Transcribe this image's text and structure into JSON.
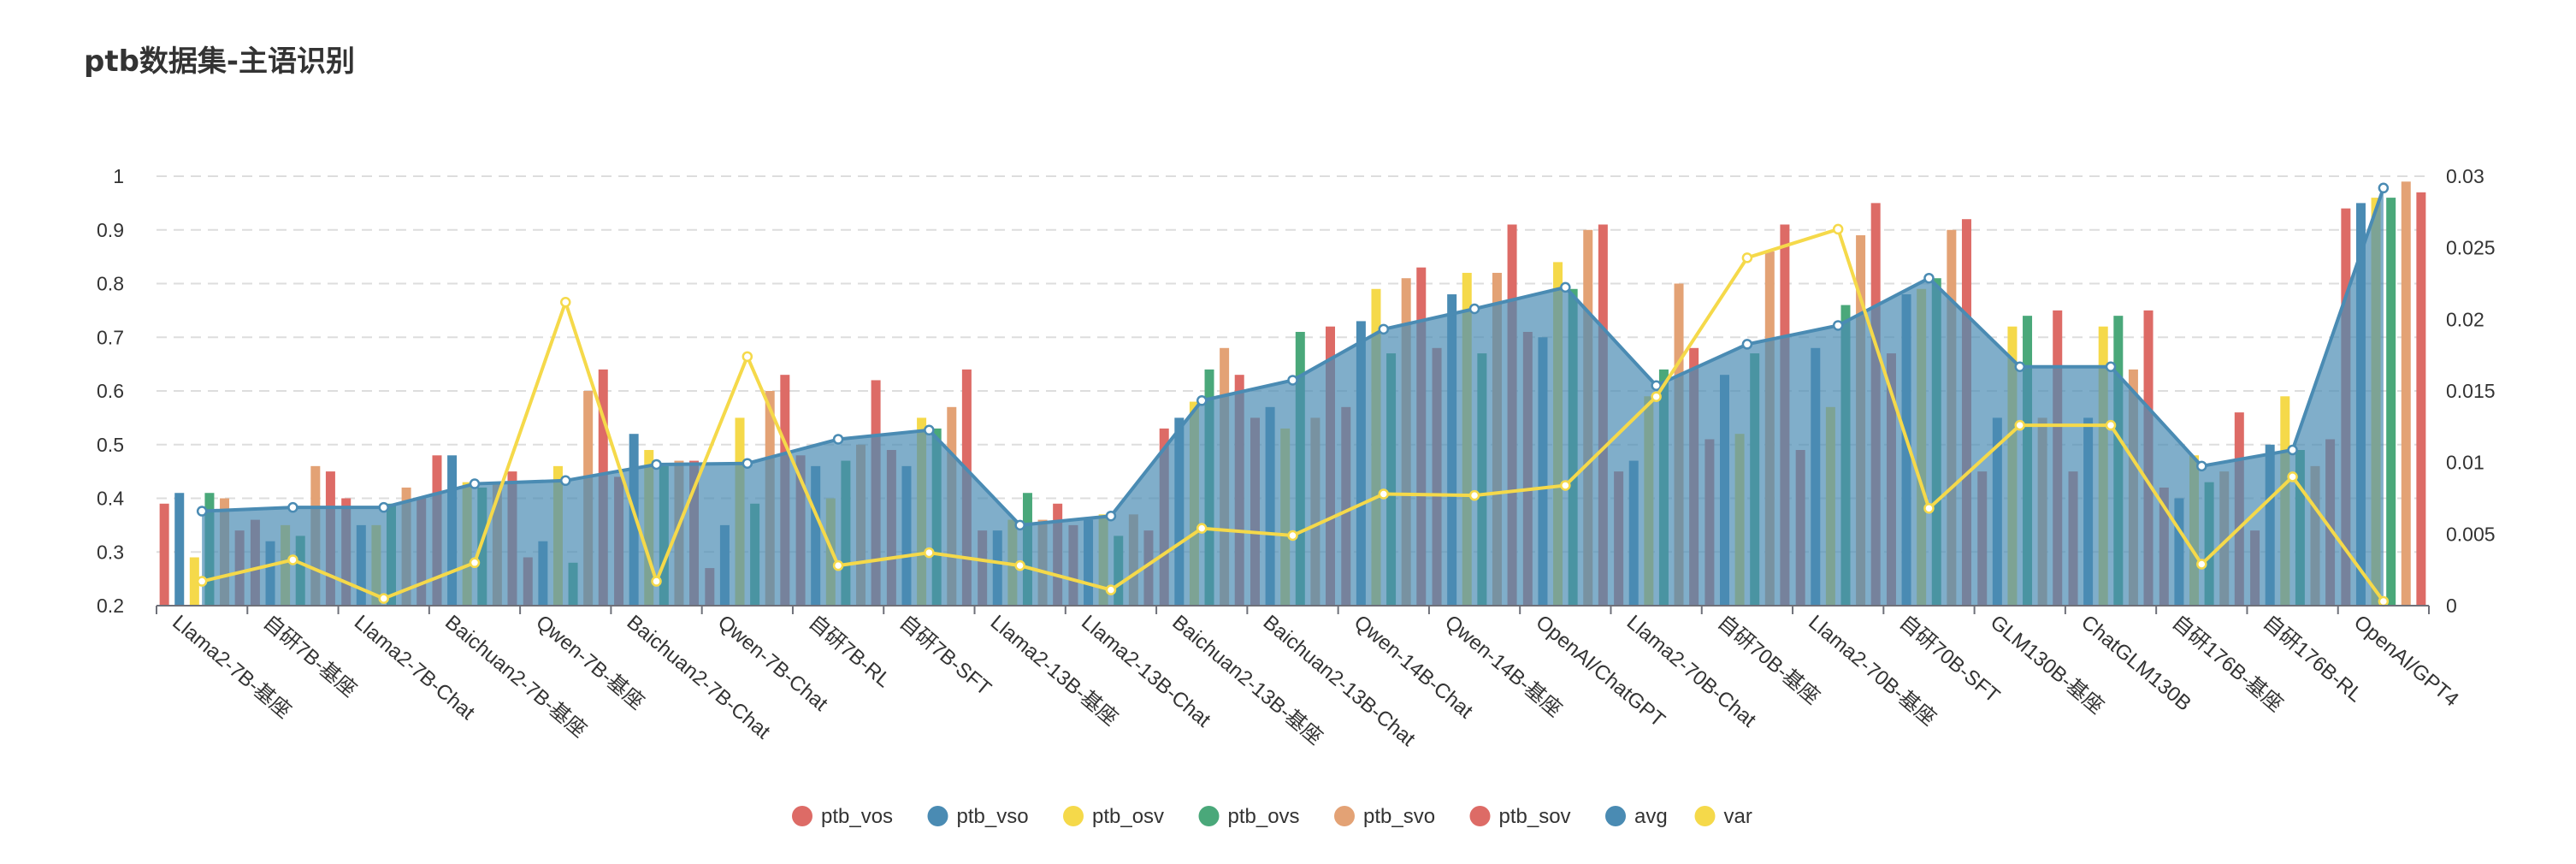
{
  "title": "ptb数据集-主语识别",
  "chart_data": {
    "type": "bar",
    "title": "ptb数据集-主语识别",
    "categories": [
      "Llama2-7B-基座",
      "自研7B-基座",
      "Llama2-7B-Chat",
      "Baichuan2-7B-基座",
      "Qwen-7B-基座",
      "Baichuan2-7B-Chat",
      "Qwen-7B-Chat",
      "自研7B-RL",
      "自研7B-SFT",
      "Llama2-13B-基座",
      "Llama2-13B-Chat",
      "Baichuan2-13B-基座",
      "Baichuan2-13B-Chat",
      "Qwen-14B-Chat",
      "Qwen-14B-基座",
      "OpenAI/ChatGPT",
      "Llama2-70B-Chat",
      "自研70B-基座",
      "Llama2-70B-基座",
      "自研70B-SFT",
      "GLM130B-基座",
      "ChatGLM130B",
      "自研176B-基座",
      "自研176B-RL",
      "OpenAI/GPT4"
    ],
    "series": [
      {
        "name": "ptb_vos",
        "type": "bar",
        "color": "#dd6b66",
        "values": [
          0.39,
          0.36,
          0.4,
          0.48,
          0.29,
          0.44,
          0.27,
          0.48,
          0.49,
          0.34,
          0.35,
          0.53,
          0.55,
          0.57,
          0.68,
          0.71,
          0.45,
          0.51,
          0.49,
          0.67,
          0.45,
          0.45,
          0.42,
          0.34,
          0.94
        ]
      },
      {
        "name": "ptb_vso",
        "type": "bar",
        "color": "#4a8bb3",
        "values": [
          0.41,
          0.32,
          0.35,
          0.48,
          0.32,
          0.52,
          0.35,
          0.46,
          0.46,
          0.34,
          0.36,
          0.55,
          0.57,
          0.73,
          0.78,
          0.7,
          0.47,
          0.63,
          0.68,
          0.78,
          0.55,
          0.55,
          0.4,
          0.5,
          0.95
        ]
      },
      {
        "name": "ptb_osv",
        "type": "bar",
        "color": "#f5d94a",
        "values": [
          0.29,
          0.35,
          0.35,
          0.43,
          0.46,
          0.49,
          0.55,
          0.4,
          0.55,
          0.36,
          0.37,
          0.58,
          0.53,
          0.79,
          0.82,
          0.84,
          0.59,
          0.52,
          0.57,
          0.79,
          0.72,
          0.72,
          0.48,
          0.59,
          0.96
        ]
      },
      {
        "name": "ptb_ovs",
        "type": "bar",
        "color": "#4aa87a",
        "values": [
          0.41,
          0.33,
          0.39,
          0.42,
          0.28,
          0.46,
          0.39,
          0.47,
          0.53,
          0.41,
          0.33,
          0.64,
          0.71,
          0.67,
          0.67,
          0.79,
          0.64,
          0.67,
          0.76,
          0.81,
          0.74,
          0.74,
          0.43,
          0.49,
          0.96
        ]
      },
      {
        "name": "ptb_svo",
        "type": "bar",
        "color": "#e3a275",
        "values": [
          0.4,
          0.46,
          0.42,
          0.43,
          0.6,
          0.47,
          0.6,
          0.5,
          0.57,
          0.36,
          0.37,
          0.68,
          0.55,
          0.81,
          0.82,
          0.9,
          0.8,
          0.86,
          0.89,
          0.9,
          0.55,
          0.64,
          0.45,
          0.46,
          0.99
        ]
      },
      {
        "name": "ptb_sov",
        "type": "bar",
        "color": "#dd6b66",
        "values": [
          0.34,
          0.45,
          0.4,
          0.45,
          0.64,
          0.47,
          0.63,
          0.62,
          0.64,
          0.39,
          0.34,
          0.63,
          0.72,
          0.83,
          0.91,
          0.91,
          0.68,
          0.91,
          0.95,
          0.92,
          0.75,
          0.75,
          0.56,
          0.51,
          0.97
        ]
      },
      {
        "name": "avg",
        "type": "area",
        "color": "#4a8bb3",
        "values": [
          0.376,
          0.383,
          0.383,
          0.427,
          0.433,
          0.463,
          0.465,
          0.51,
          0.527,
          0.35,
          0.367,
          0.582,
          0.62,
          0.715,
          0.753,
          0.793,
          0.61,
          0.687,
          0.722,
          0.81,
          0.645,
          0.645,
          0.46,
          0.49,
          0.978
        ]
      },
      {
        "name": "var",
        "type": "line",
        "axis": "right",
        "color": "#f5d94a",
        "values": [
          0.0017,
          0.0032,
          0.0005,
          0.003,
          0.0212,
          0.0017,
          0.0174,
          0.0028,
          0.0037,
          0.0028,
          0.0011,
          0.0054,
          0.0049,
          0.0078,
          0.0077,
          0.0084,
          0.0146,
          0.0243,
          0.0263,
          0.0068,
          0.0126,
          0.0126,
          0.0029,
          0.009,
          0.0003
        ]
      }
    ],
    "y_left": {
      "range": [
        0.2,
        1
      ],
      "ticks": [
        "0.2",
        "0.3",
        "0.4",
        "0.5",
        "0.6",
        "0.7",
        "0.8",
        "0.9",
        "1"
      ]
    },
    "y_right": {
      "range": [
        0,
        0.03
      ],
      "ticks": [
        "0",
        "0.005",
        "0.01",
        "0.015",
        "0.02",
        "0.025",
        "0.03"
      ]
    },
    "grid": true,
    "legend_position": "bottom"
  }
}
